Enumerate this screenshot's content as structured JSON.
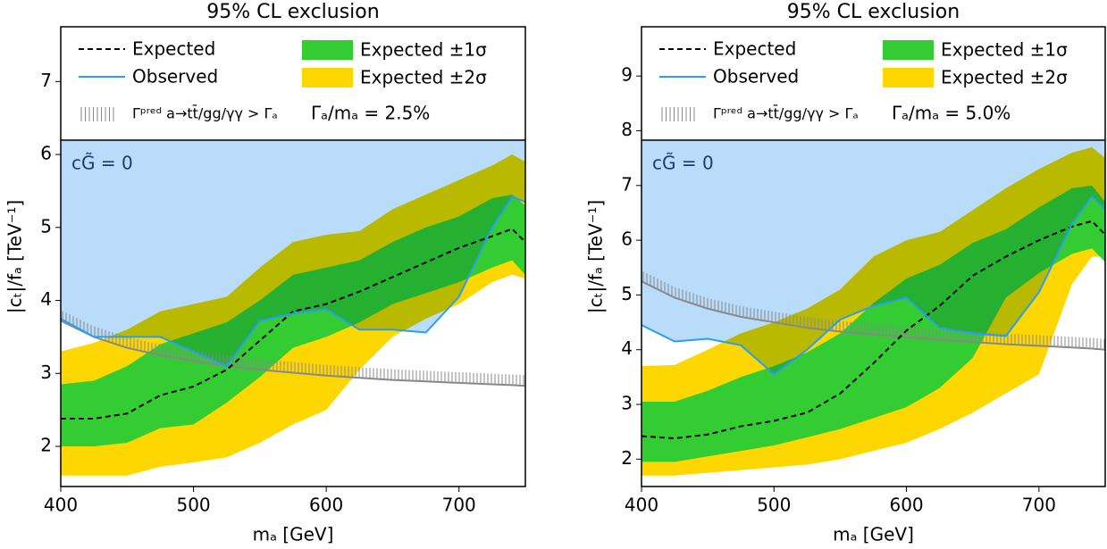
{
  "chart_data": [
    {
      "type": "line",
      "title": "95% CL exclusion",
      "x_label": "mₐ [GeV]",
      "y_label": "|cₜ|/fₐ [TeV⁻¹]",
      "annotation": "cG̃ = 0",
      "width_note": "Γₐ/mₐ = 2.5%",
      "excluded_color": "#b9dcfa",
      "xlim": [
        400,
        750
      ],
      "ylim": [
        1.45,
        7.75
      ],
      "xticks": [
        400,
        500,
        600,
        700
      ],
      "yticks": [
        2,
        3,
        4,
        5,
        6,
        7
      ],
      "x": [
        400,
        425,
        450,
        475,
        500,
        525,
        550,
        575,
        600,
        625,
        650,
        675,
        700,
        725,
        740,
        750
      ],
      "series": [
        {
          "name": "Expected",
          "color": "#000000",
          "dash": true,
          "values": [
            2.38,
            2.38,
            2.45,
            2.7,
            2.82,
            3.05,
            3.45,
            3.85,
            3.95,
            4.12,
            4.32,
            4.52,
            4.72,
            4.88,
            4.98,
            4.8
          ]
        },
        {
          "name": "Observed",
          "color": "#2a9df4",
          "values": [
            3.75,
            3.5,
            3.5,
            3.5,
            3.3,
            3.1,
            3.72,
            3.82,
            3.88,
            3.6,
            3.6,
            3.56,
            4.05,
            5.0,
            5.42,
            5.35
          ]
        },
        {
          "name": "Expected ±1σ",
          "color": "#33cc33",
          "lower": [
            2.0,
            2.0,
            2.05,
            2.25,
            2.3,
            2.6,
            2.95,
            3.35,
            3.5,
            3.7,
            3.95,
            4.1,
            4.25,
            4.45,
            4.55,
            4.35
          ],
          "upper": [
            2.85,
            2.9,
            3.1,
            3.4,
            3.55,
            3.7,
            4.0,
            4.35,
            4.45,
            4.55,
            4.8,
            5.0,
            5.15,
            5.4,
            5.45,
            5.3
          ]
        },
        {
          "name": "Expected ±2σ",
          "color": "#ffd700",
          "lower": [
            1.6,
            1.6,
            1.6,
            1.72,
            1.78,
            1.85,
            2.05,
            2.3,
            2.5,
            3.05,
            3.5,
            3.75,
            3.95,
            4.25,
            4.35,
            4.3
          ],
          "upper": [
            3.3,
            3.42,
            3.6,
            3.85,
            3.95,
            4.05,
            4.45,
            4.8,
            4.9,
            4.95,
            5.25,
            5.45,
            5.65,
            5.85,
            6.0,
            5.9
          ]
        },
        {
          "name": "Γᵖʳᵉᵈ a→tt̄/gg/γγ > Γₐ",
          "color": "#888888",
          "hatch": true,
          "values": [
            3.72,
            3.5,
            3.35,
            3.25,
            3.17,
            3.1,
            3.05,
            3.01,
            2.97,
            2.94,
            2.91,
            2.89,
            2.87,
            2.85,
            2.84,
            2.83
          ]
        }
      ]
    },
    {
      "type": "line",
      "title": "95% CL exclusion",
      "x_label": "mₐ [GeV]",
      "y_label": "|cₜ|/fₐ [TeV⁻¹]",
      "annotation": "cG̃ = 0",
      "width_note": "Γₐ/mₐ = 5.0%",
      "excluded_color": "#b9dcfa",
      "xlim": [
        400,
        750
      ],
      "ylim": [
        1.5,
        9.9
      ],
      "xticks": [
        400,
        500,
        600,
        700
      ],
      "yticks": [
        2,
        3,
        4,
        5,
        6,
        7,
        8,
        9
      ],
      "x": [
        400,
        425,
        450,
        475,
        500,
        525,
        550,
        575,
        600,
        625,
        650,
        675,
        700,
        725,
        740,
        750
      ],
      "series": [
        {
          "name": "Expected",
          "color": "#000000",
          "dash": true,
          "values": [
            2.42,
            2.38,
            2.45,
            2.6,
            2.7,
            2.85,
            3.2,
            3.75,
            4.35,
            4.8,
            5.35,
            5.7,
            6.0,
            6.25,
            6.35,
            6.1
          ]
        },
        {
          "name": "Observed",
          "color": "#2a9df4",
          "values": [
            4.45,
            4.15,
            4.2,
            4.08,
            3.55,
            4.0,
            4.55,
            4.8,
            4.95,
            4.4,
            4.3,
            4.25,
            5.05,
            6.3,
            6.8,
            6.55
          ]
        },
        {
          "name": "Expected ±1σ",
          "color": "#33cc33",
          "lower": [
            1.95,
            1.95,
            2.05,
            2.15,
            2.25,
            2.4,
            2.55,
            2.75,
            2.95,
            3.3,
            3.85,
            4.95,
            5.4,
            5.75,
            5.85,
            5.6
          ],
          "upper": [
            3.05,
            3.05,
            3.25,
            3.5,
            3.7,
            3.95,
            4.3,
            4.85,
            5.3,
            5.55,
            5.95,
            6.2,
            6.6,
            6.95,
            7.0,
            6.7
          ]
        },
        {
          "name": "Expected ±2σ",
          "color": "#ffd700",
          "lower": [
            1.7,
            1.7,
            1.75,
            1.8,
            1.85,
            1.9,
            2.0,
            2.15,
            2.3,
            2.55,
            2.85,
            3.2,
            3.55,
            5.2,
            5.7,
            5.7
          ],
          "upper": [
            3.7,
            3.72,
            4.0,
            4.3,
            4.5,
            4.75,
            5.1,
            5.7,
            6.0,
            6.15,
            6.55,
            6.95,
            7.3,
            7.6,
            7.7,
            7.5
          ]
        },
        {
          "name": "Γᵖʳᵉᵈ a→tt̄/gg/γγ > Γₐ",
          "color": "#888888",
          "hatch": true,
          "values": [
            5.25,
            4.95,
            4.75,
            4.6,
            4.5,
            4.4,
            4.33,
            4.28,
            4.23,
            4.18,
            4.14,
            4.1,
            4.07,
            4.04,
            4.02,
            4.0
          ]
        }
      ]
    }
  ]
}
